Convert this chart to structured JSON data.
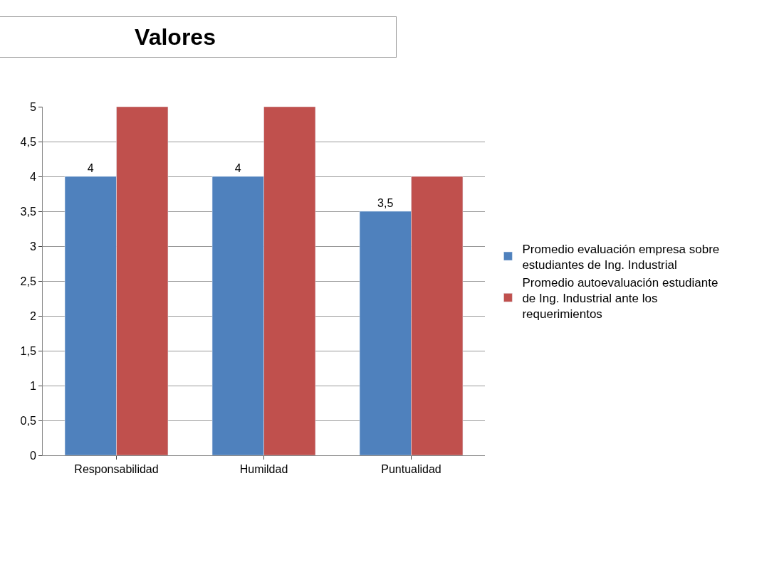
{
  "chart_data": {
    "type": "bar",
    "title": "Valores",
    "categories": [
      "Responsabilidad",
      "Humildad",
      "Puntualidad"
    ],
    "series": [
      {
        "name": "Promedio evaluación empresa sobre estudiantes de Ing. Industrial",
        "color": "#4f81bd",
        "values": [
          4,
          4,
          3.5
        ],
        "value_labels": [
          "4",
          "4",
          "3,5"
        ]
      },
      {
        "name": "Promedio autoevaluación estudiante de Ing. Industrial ante los requerimientos",
        "color": "#c0504d",
        "values": [
          5,
          5,
          4
        ]
      }
    ],
    "ylim": [
      0,
      5
    ],
    "yticks": [
      0,
      {
        "value": 0.5,
        "label": "0,5"
      },
      1,
      {
        "value": 1.5,
        "label": "1,5"
      },
      2,
      {
        "value": 2.5,
        "label": "2,5"
      },
      3,
      {
        "value": 3.5,
        "label": "3,5"
      },
      4,
      {
        "value": 4.5,
        "label": "4,5"
      },
      5
    ],
    "grid": "y",
    "legend": "right"
  }
}
